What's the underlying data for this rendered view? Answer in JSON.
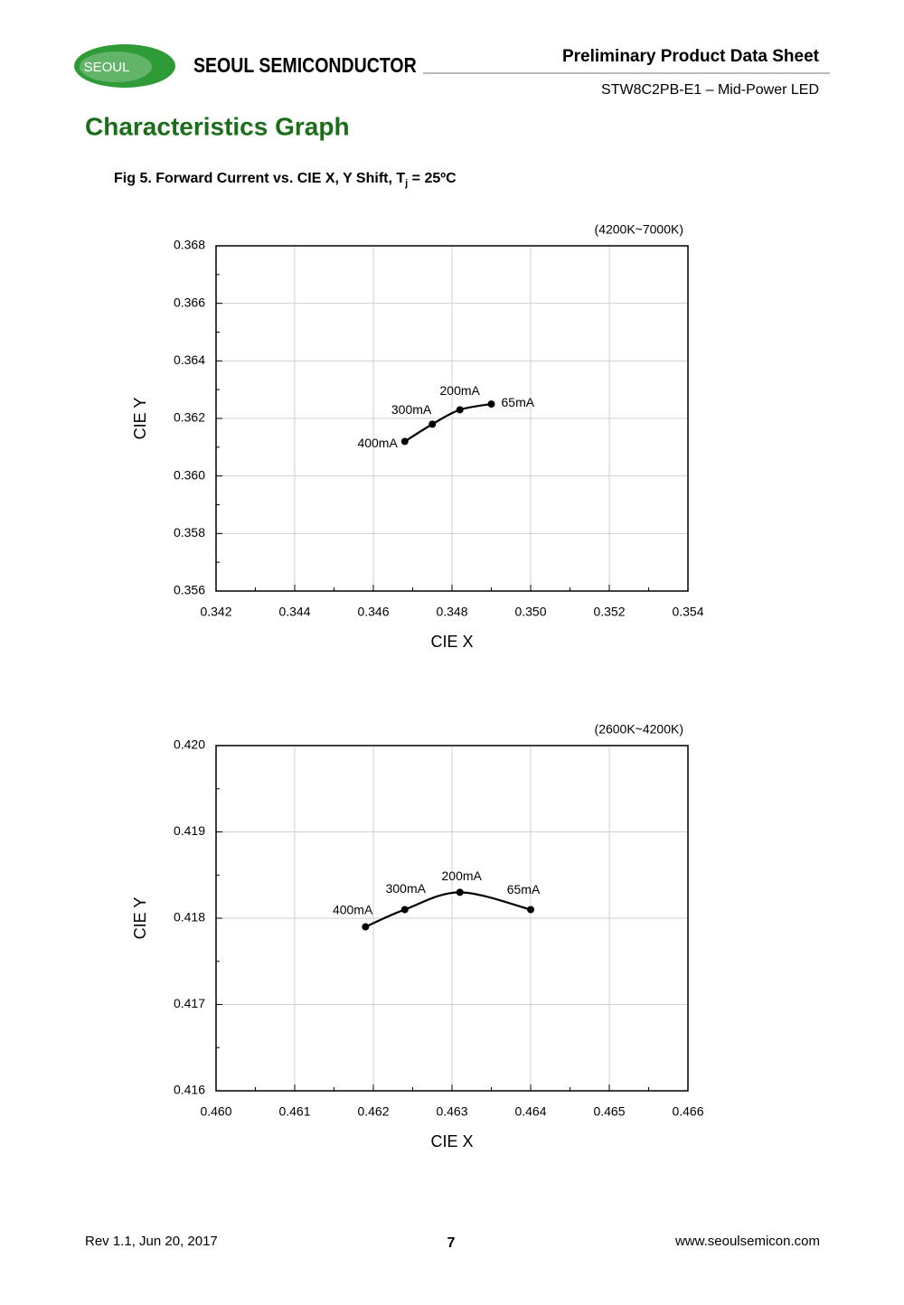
{
  "header": {
    "logo_text": "SEOUL",
    "company": "SEOUL SEMICONDUCTOR",
    "doc_type": "Preliminary Product Data Sheet",
    "product": "STW8C2PB-E1 – Mid-Power LED"
  },
  "section_title": "Characteristics Graph",
  "figure_caption": {
    "main": "Fig 5. Forward Current vs. CIE X, Y Shift, T",
    "sub": "j",
    "tail": " = 25ºC"
  },
  "chart_data": [
    {
      "type": "line",
      "annotation": "(4200K~7000K)",
      "x_label": "CIE X",
      "y_label": "CIE Y",
      "x": [
        0.3468,
        0.3475,
        0.3482,
        0.349
      ],
      "series": [
        {
          "color": "#000000",
          "values": [
            0.3612,
            0.3618,
            0.3623,
            0.3625
          ]
        }
      ],
      "point_labels": [
        "400mA",
        "300mA",
        "200mA",
        "65mA"
      ],
      "xlim": [
        0.342,
        0.354
      ],
      "xticks": [
        0.342,
        0.344,
        0.346,
        0.348,
        {
          "value": 0.35,
          "label": "0.350"
        },
        0.352,
        0.354
      ],
      "ylim": [
        0.356,
        0.368
      ],
      "yticks": [
        0.356,
        0.358,
        {
          "value": 0.36,
          "label": "0.360"
        },
        0.362,
        0.364,
        0.366,
        0.368
      ],
      "grid": true
    },
    {
      "type": "line",
      "annotation": "(2600K~4200K)",
      "x_label": "CIE X",
      "y_label": "CIE Y",
      "x": [
        0.4619,
        0.4624,
        0.4631,
        0.464
      ],
      "series": [
        {
          "color": "#000000",
          "values": [
            0.4179,
            0.4181,
            0.4183,
            0.4181
          ]
        }
      ],
      "point_labels": [
        "400mA",
        "300mA",
        "200mA",
        "65mA"
      ],
      "xlim": [
        0.46,
        0.466
      ],
      "xticks": [
        {
          "value": 0.46,
          "label": "0.460"
        },
        0.461,
        0.462,
        0.463,
        0.464,
        0.465,
        0.466
      ],
      "ylim": [
        0.416,
        0.42
      ],
      "yticks": [
        0.416,
        0.417,
        0.418,
        0.419,
        {
          "value": 0.42,
          "label": "0.420"
        }
      ],
      "grid": true
    }
  ],
  "footer": {
    "revision": "Rev 1.1, Jun 20, 2017",
    "page": "7",
    "url": "www.seoulsemicon.com"
  }
}
